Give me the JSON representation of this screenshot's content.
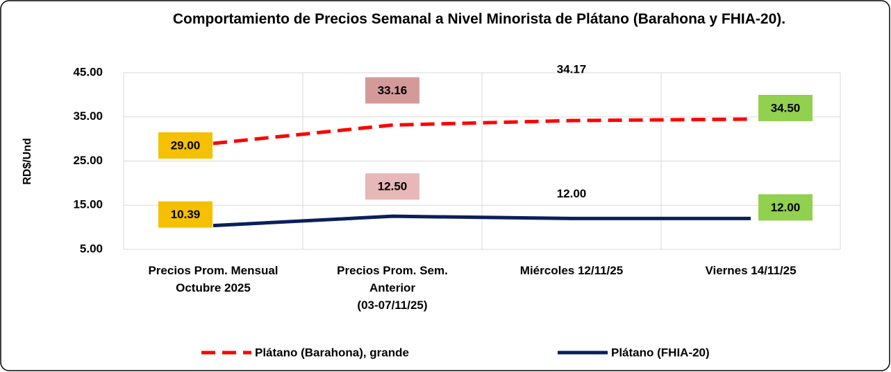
{
  "chart_data": {
    "type": "line",
    "title": "Comportamiento de Precios Semanal a Nivel Minorista de Plátano (Barahona y FHIA-20).",
    "y_label": "RD$/Und",
    "categories": [
      "Precios Prom. Mensual\nOctubre 2025",
      "Precios Prom. Sem.\nAnterior\n(03-07/11/25)",
      "Miércoles 12/11/25",
      "Viernes 14/11/25"
    ],
    "series": [
      {
        "name": "Plátano (Barahona), grande",
        "color": "#ff0000",
        "dashed": true,
        "values": [
          29.0,
          33.16,
          34.17,
          34.5
        ],
        "value_labels": [
          "29.00",
          "33.16",
          "34.17",
          "34.50"
        ],
        "label_colors": [
          "#f5c000",
          "#d49a9a",
          null,
          "#92d050"
        ]
      },
      {
        "name": "Plátano (FHIA-20)",
        "color": "#0b1f5c",
        "dashed": false,
        "values": [
          10.39,
          12.5,
          12.0,
          12.0
        ],
        "value_labels": [
          "10.39",
          "12.50",
          "12.00",
          "12.00"
        ],
        "label_colors": [
          "#f5c000",
          "#e6b8b8",
          null,
          "#92d050"
        ]
      }
    ],
    "ylim": [
      5,
      45
    ],
    "yticks": [
      {
        "value": 5,
        "label": "5.00"
      },
      {
        "value": 15,
        "label": "15.00"
      },
      {
        "value": 25,
        "label": "25.00"
      },
      {
        "value": 35,
        "label": "35.00"
      },
      {
        "value": 45,
        "label": "45.00"
      }
    ],
    "grid": true,
    "legend": "bottom"
  }
}
